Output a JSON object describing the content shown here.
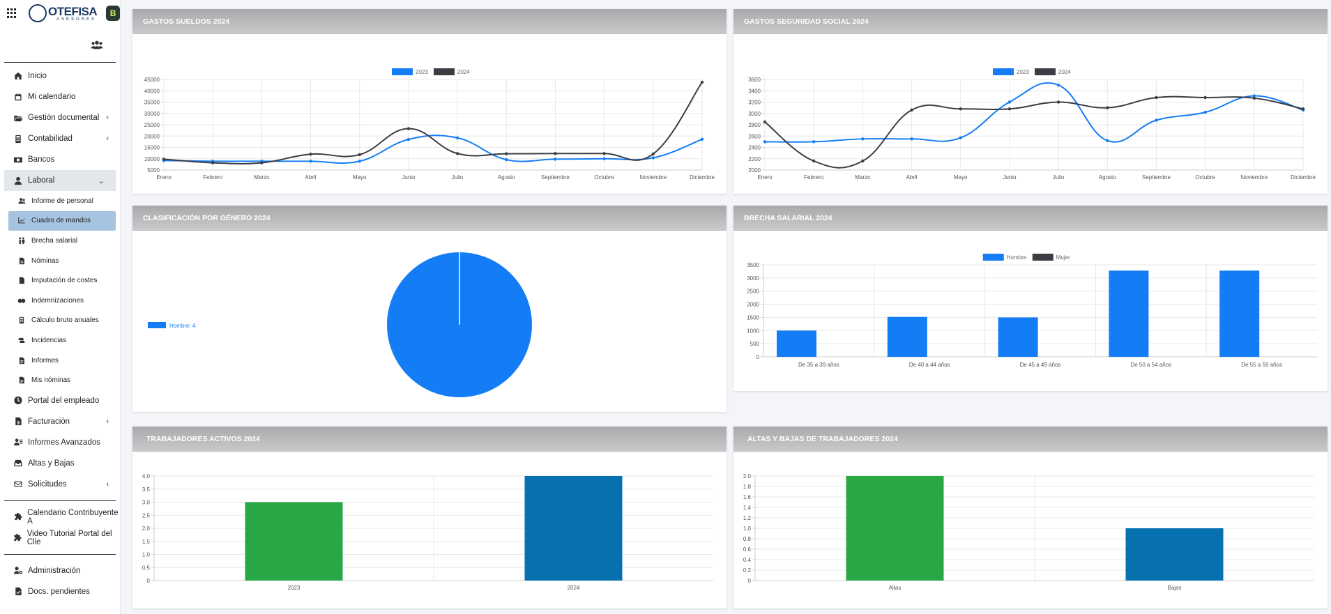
{
  "brand": {
    "logo_main": "OTEFISA",
    "logo_sub": "ASESORES",
    "app_badge": "B"
  },
  "sidebar": {
    "items": [
      {
        "label": "Inicio",
        "icon": "home-icon"
      },
      {
        "label": "Mi calendario",
        "icon": "calendar-icon"
      },
      {
        "label": "Gestión documental",
        "icon": "folder-open-icon",
        "chevron": "‹"
      },
      {
        "label": "Contabilidad",
        "icon": "calculator-icon",
        "chevron": "‹"
      },
      {
        "label": "Bancos",
        "icon": "money-bill-icon"
      },
      {
        "label": "Laboral",
        "icon": "user-tie-icon",
        "chevron": "⌄"
      }
    ],
    "laboral_sub": [
      {
        "label": "Informe de personal",
        "icon": "users-icon"
      },
      {
        "label": "Cuadro de mandos",
        "icon": "chart-line-icon",
        "active": true
      },
      {
        "label": "Brecha salarial",
        "icon": "people-gender-icon"
      },
      {
        "label": "Nóminas",
        "icon": "file-invoice-icon"
      },
      {
        "label": "Imputación de costes",
        "icon": "file-icon"
      },
      {
        "label": "Indemnizaciones",
        "icon": "handshake-icon"
      },
      {
        "label": "Cálculo bruto anuales",
        "icon": "calculator-icon"
      },
      {
        "label": "Incidencias",
        "icon": "coins-icon"
      },
      {
        "label": "Informes",
        "icon": "file-text-icon"
      },
      {
        "label": "Mis nóminas",
        "icon": "file-text-icon"
      }
    ],
    "items_after": [
      {
        "label": "Portal del empleado",
        "icon": "clock-icon"
      },
      {
        "label": "Facturación",
        "icon": "file-invoice-dollar-icon",
        "chevron": "‹"
      },
      {
        "label": "Informes Avanzados",
        "icon": "user-report-icon"
      },
      {
        "label": "Altas y Bajas",
        "icon": "inbox-icon"
      },
      {
        "label": "Solicitudes",
        "icon": "envelope-icon",
        "chevron": "‹"
      }
    ],
    "links": [
      {
        "label": "Calendario Contribuyente A",
        "icon": "puzzle-icon"
      },
      {
        "label": "Video Tutorial Portal del Clie",
        "icon": "puzzle-icon"
      }
    ],
    "bottom": [
      {
        "label": "Administración",
        "icon": "user-cog-icon"
      },
      {
        "label": "Docs. pendientes",
        "icon": "file-check-icon"
      }
    ]
  },
  "panels": {
    "sueldos": {
      "title": "GASTOS SUELDOS 2024"
    },
    "seguridad": {
      "title": "GASTOS SEGURIDAD SOCIAL 2024"
    },
    "genero": {
      "title": "CLASIFICACIÓN POR GÉNERO 2024"
    },
    "brecha": {
      "title": "BRECHA SALARIAL 2024"
    },
    "activos": {
      "title": "TRABAJADORES ACTIVOS 2024"
    },
    "altas": {
      "title": "ALTAS Y BAJAS DE TRABAJADORES 2024"
    }
  },
  "colors": {
    "blue": "#147df5",
    "dark": "#3a3d42",
    "green": "#28a745",
    "teal": "#0771b0",
    "grid": "#e8e8e8",
    "axis_text": "#555555"
  },
  "chart_data": [
    {
      "id": "sueldos",
      "type": "line",
      "title": "GASTOS SUELDOS 2024",
      "categories": [
        "Enero",
        "Febrero",
        "Marzo",
        "Abril",
        "Mayo",
        "Junio",
        "Julio",
        "Agosto",
        "Septiembre",
        "Octubre",
        "Noviembre",
        "Diciembre"
      ],
      "series": [
        {
          "name": "2023",
          "color": "#147df5",
          "values": [
            9200,
            8900,
            8900,
            8900,
            8900,
            18500,
            19200,
            9600,
            9800,
            10000,
            10400,
            18600
          ]
        },
        {
          "name": "2024",
          "color": "#3a3d42",
          "values": [
            9800,
            8200,
            8200,
            12000,
            11800,
            23300,
            12300,
            12200,
            12300,
            12300,
            12100,
            43800
          ]
        }
      ],
      "ylim": [
        5000,
        45000
      ],
      "yticks": [
        5000,
        10000,
        15000,
        20000,
        25000,
        30000,
        35000,
        40000,
        45000
      ],
      "legend": "top"
    },
    {
      "id": "seguridad",
      "type": "line",
      "title": "GASTOS SEGURIDAD SOCIAL 2024",
      "categories": [
        "Enero",
        "Febrero",
        "Marzo",
        "Abril",
        "Mayo",
        "Junio",
        "Julio",
        "Agosto",
        "Septiembre",
        "Octubre",
        "Noviembre",
        "Diciembre"
      ],
      "series": [
        {
          "name": "2023",
          "color": "#147df5",
          "values": [
            2500,
            2500,
            2550,
            2550,
            2570,
            3200,
            3500,
            2520,
            2880,
            3020,
            3310,
            3060
          ]
        },
        {
          "name": "2024",
          "color": "#3a3d42",
          "values": [
            2850,
            2160,
            2160,
            3060,
            3080,
            3080,
            3200,
            3100,
            3280,
            3280,
            3270,
            3080
          ]
        }
      ],
      "ylim": [
        2000,
        3600
      ],
      "yticks": [
        2000,
        2200,
        2400,
        2600,
        2800,
        3000,
        3200,
        3400,
        3600
      ],
      "legend": "top"
    },
    {
      "id": "genero",
      "type": "pie",
      "title": "CLASIFICACIÓN POR GÉNERO 2024",
      "slices": [
        {
          "label": "Hombre",
          "value": 4,
          "color": "#147df5"
        }
      ],
      "legend_text": "Hombre: 4",
      "legend": "left"
    },
    {
      "id": "brecha",
      "type": "bar",
      "title": "BRECHA SALARIAL 2024",
      "categories": [
        "De 35 a 39 años",
        "De 40 a 44 años",
        "De 45 a 49 años",
        "De 50 a 54 años",
        "De 55 a 59 años"
      ],
      "series": [
        {
          "name": "Hombre",
          "color": "#147df5",
          "values": [
            1000,
            1520,
            1500,
            3280,
            3280
          ]
        },
        {
          "name": "Mujer",
          "color": "#3a3d42",
          "values": [
            0,
            0,
            0,
            0,
            0
          ]
        }
      ],
      "ylim": [
        0,
        3500
      ],
      "yticks": [
        0,
        500,
        1000,
        1500,
        2000,
        2500,
        3000,
        3500
      ],
      "legend": "top"
    },
    {
      "id": "activos",
      "type": "bar",
      "title": "TRABAJADORES ACTIVOS 2024",
      "categories": [
        "2023",
        "2024"
      ],
      "values": [
        3,
        4
      ],
      "colors": [
        "#28a745",
        "#0771b0"
      ],
      "ylim": [
        0,
        4
      ],
      "yticks": [
        "0",
        "0.5",
        "1.0",
        "1.5",
        "2.0",
        "2.5",
        "3.0",
        "3.5",
        "4.0"
      ]
    },
    {
      "id": "altas",
      "type": "bar",
      "title": "ALTAS Y BAJAS DE TRABAJADORES 2024",
      "categories": [
        "Altas",
        "Bajas"
      ],
      "values": [
        2,
        1
      ],
      "colors": [
        "#28a745",
        "#0771b0"
      ],
      "ylim": [
        0,
        2
      ],
      "yticks": [
        "0",
        "0.2",
        "0.4",
        "0.6",
        "0.8",
        "1.0",
        "1.2",
        "1.4",
        "1.6",
        "1.8",
        "2.0"
      ]
    }
  ]
}
